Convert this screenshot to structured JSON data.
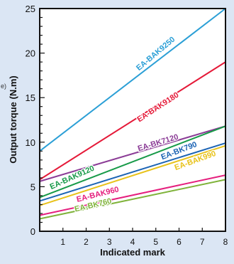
{
  "page": {
    "left_fragment": "e)"
  },
  "chart_data": {
    "type": "line",
    "xlabel": "Indicated mark",
    "ylabel": "Output torque (N.m)",
    "xlim": [
      0,
      8
    ],
    "ylim": [
      0,
      25
    ],
    "x_ticks": [
      1,
      2,
      3,
      4,
      5,
      6,
      7,
      8
    ],
    "y_ticks": [
      0,
      5,
      10,
      15,
      20,
      25
    ],
    "grid": false,
    "legend": "inline labels",
    "series": [
      {
        "name": "EA-BAK9250",
        "x": [
          0,
          8
        ],
        "y": [
          9.0,
          25.0
        ],
        "color": "#2b9fd6",
        "label_at": [
          5.0,
          19.9
        ],
        "label_angle": -40
      },
      {
        "name": "EA-BAK9180",
        "x": [
          0,
          8
        ],
        "y": [
          5.8,
          19.0
        ],
        "color": "#e51938",
        "label_at": [
          5.1,
          13.9
        ],
        "label_angle": -33
      },
      {
        "name": "EA-BK7120",
        "x": [
          0,
          8
        ],
        "y": [
          5.6,
          11.8
        ],
        "color": "#8b3c96",
        "label_at": [
          5.1,
          9.9
        ],
        "label_angle": -17
      },
      {
        "name": "EA-BAK9120",
        "x": [
          0,
          8
        ],
        "y": [
          3.8,
          11.8
        ],
        "color": "#179a48",
        "label_at": [
          1.4,
          6.0
        ],
        "label_angle": -24
      },
      {
        "name": "EA-BK790",
        "x": [
          0,
          8
        ],
        "y": [
          3.4,
          9.9
        ],
        "color": "#1c64b4",
        "label_at": [
          6.0,
          9.0
        ],
        "label_angle": -21
      },
      {
        "name": "EA-BAK990",
        "x": [
          0,
          8
        ],
        "y": [
          2.9,
          9.6
        ],
        "color": "#e8c21a",
        "label_at": [
          6.7,
          7.9
        ],
        "label_angle": -20
      },
      {
        "name": "EA-BAK960",
        "x": [
          0,
          8
        ],
        "y": [
          1.8,
          6.3
        ],
        "color": "#e5207e",
        "label_at": [
          2.5,
          4.1
        ],
        "label_angle": -14
      },
      {
        "name": "EA-BK760",
        "x": [
          0,
          8
        ],
        "y": [
          1.4,
          5.8
        ],
        "color": "#7fb33a",
        "label_at": [
          2.3,
          2.9
        ],
        "label_angle": -13
      }
    ]
  }
}
